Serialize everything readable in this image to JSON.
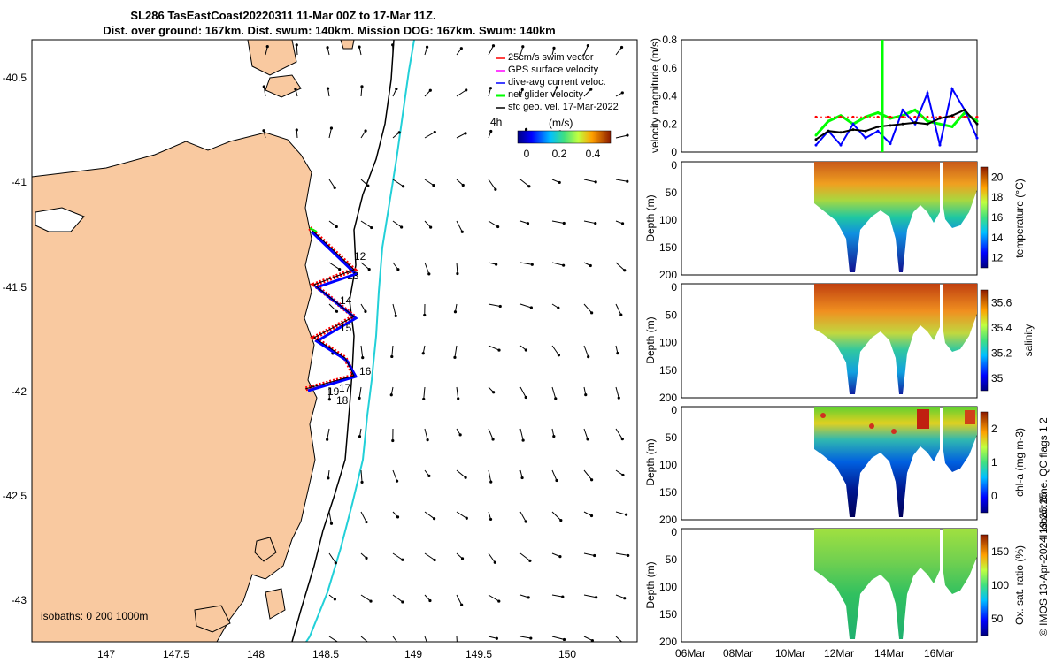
{
  "titles": {
    "line1": "SL286 TasEastCoast20220311 11-Mar 00Z to 17-Mar 11Z.",
    "line2": "Dist. over ground: 167km. Dist. swum: 140km. Mission DOG: 167km. Swum: 140km"
  },
  "map": {
    "lon_ticks": [
      "147",
      "147.5",
      "148",
      "148.5",
      "149",
      "149.5",
      "150"
    ],
    "lat_ticks": [
      "-40.5",
      "-41",
      "-41.5",
      "-42",
      "-42.5",
      "-43"
    ],
    "legend": [
      {
        "label": "25cm/s swim vector",
        "color": "#ff0000"
      },
      {
        "label": "GPS surface velocity",
        "color": "#ff00ff"
      },
      {
        "label": "dive-avg current veloc.",
        "color": "#0000ff"
      },
      {
        "label": "net glider velocity",
        "color": "#00ff00"
      },
      {
        "label": "sfc geo. vel. 17-Mar-2022",
        "color": "#000000"
      }
    ],
    "colorbar": {
      "label": "(m/s)",
      "prefix": "4h",
      "ticks": [
        "0",
        "0.2",
        "0.4"
      ]
    },
    "day_labels": [
      "12",
      "13",
      "14",
      "15",
      "16",
      "17",
      "18",
      "19"
    ],
    "isobaths_label": "isobaths: 0   200  1000m",
    "land_color": "#f9c9a0"
  },
  "panels": {
    "velocity": {
      "ylabel": "velocity magnitude (m/s)",
      "yticks": [
        "0",
        "0.2",
        "0.4",
        "0.6",
        "0.8"
      ]
    },
    "temperature": {
      "ylabel": "Depth (m)",
      "cblabel": "temperature (°C)",
      "yticks": [
        "0",
        "50",
        "100",
        "150",
        "200"
      ],
      "cbticks": [
        "12",
        "14",
        "16",
        "18",
        "20"
      ]
    },
    "salinity": {
      "ylabel": "Depth (m)",
      "cblabel": "salinity",
      "yticks": [
        "0",
        "50",
        "100",
        "150",
        "200"
      ],
      "cbticks": [
        "35",
        "35.2",
        "35.4",
        "35.6"
      ]
    },
    "chla": {
      "ylabel": "Depth (m)",
      "cblabel": "chl-a (mg m-3)",
      "yticks": [
        "0",
        "50",
        "100",
        "150",
        "200"
      ],
      "cbticks": [
        "0",
        "1",
        "2"
      ]
    },
    "oxygen": {
      "ylabel": "Depth (m)",
      "cblabel": "Ox. sat. ratio (%)",
      "yticks": [
        "0",
        "50",
        "100",
        "150",
        "200"
      ],
      "cbticks": [
        "50",
        "100",
        "150"
      ]
    },
    "time_ticks": [
      "06Mar",
      "08Mar",
      "10Mar",
      "12Mar",
      "14Mar",
      "16Mar"
    ]
  },
  "side_notes": {
    "qc": "Hobart time. QC flags 1  2",
    "imos": "© IMOS 13-Apr-2024 19:25:25"
  },
  "chart_data": {
    "type": "line",
    "title": "SL286 TasEastCoast20220311 11-Mar 00Z to 17-Mar 11Z.",
    "x": [
      "11Mar",
      "11.5Mar",
      "12Mar",
      "12.5Mar",
      "13Mar",
      "13.5Mar",
      "14Mar",
      "14.5Mar",
      "15Mar",
      "15.5Mar",
      "16Mar",
      "16.5Mar",
      "17Mar",
      "17.4Mar"
    ],
    "ylabel": "velocity magnitude (m/s)",
    "ylim": [
      0,
      0.8
    ],
    "series": [
      {
        "name": "net glider velocity",
        "color": "#00ff00",
        "values": [
          0.12,
          0.22,
          0.26,
          0.2,
          0.25,
          0.28,
          0.24,
          0.26,
          0.3,
          0.22,
          0.2,
          0.18,
          0.28,
          0.22
        ]
      },
      {
        "name": "dive-avg current veloc.",
        "color": "#0000ff",
        "values": [
          0.05,
          0.15,
          0.05,
          0.2,
          0.1,
          0.15,
          0.06,
          0.3,
          0.2,
          0.42,
          0.05,
          0.45,
          0.3,
          0.1
        ]
      },
      {
        "name": "25cm/s swim vector",
        "color": "#ff0000",
        "values": [
          0.25,
          0.25,
          0.25,
          0.25,
          0.25,
          0.25,
          0.25,
          0.25,
          0.25,
          0.25,
          0.25,
          0.25,
          0.25,
          0.25
        ]
      },
      {
        "name": "sfc geo. vel. 17-Mar-2022",
        "color": "#000000",
        "values": [
          0.09,
          0.15,
          0.14,
          0.16,
          0.15,
          0.18,
          0.19,
          0.2,
          0.21,
          0.2,
          0.24,
          0.26,
          0.3,
          0.2
        ]
      }
    ]
  }
}
